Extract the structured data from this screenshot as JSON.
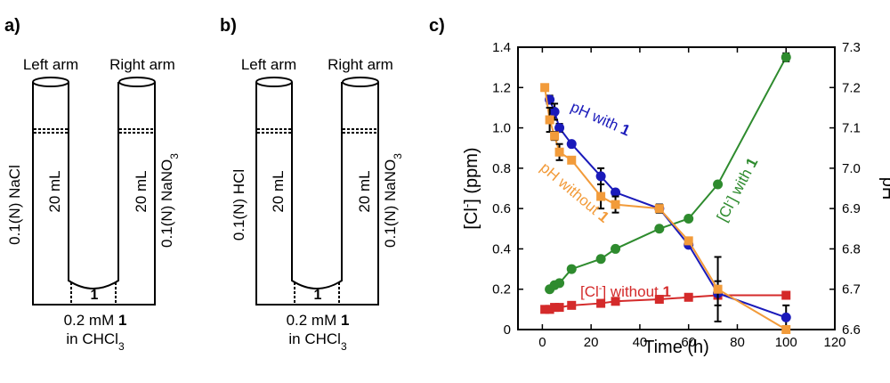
{
  "panels": {
    "a": {
      "letter": "a)",
      "left_arm": "Left arm",
      "right_arm": "Right arm",
      "left_solution": "0.1(N) NaCl",
      "right_solution": "0.1(N) NaNO3",
      "left_volume": "20 mL",
      "right_volume": "20 mL",
      "membrane_label": "1",
      "bottom_line1": "0.2 mM 1",
      "bottom_line2": "in CHCl3"
    },
    "b": {
      "letter": "b)",
      "left_arm": "Left arm",
      "right_arm": "Right arm",
      "left_solution": "0.1(N) HCl",
      "right_solution": "0.1(N) NaNO3",
      "left_volume": "20 mL",
      "right_volume": "20 mL",
      "membrane_label": "1",
      "bottom_line1": "0.2 mM 1",
      "bottom_line2": "in CHCl3"
    },
    "c": {
      "letter": "c)"
    }
  },
  "chart_data": {
    "type": "line",
    "xlabel": "Time (h)",
    "ylabel": "[Cl-] (ppm)",
    "y2label": "pH",
    "xlim": [
      -10,
      120
    ],
    "ylim": [
      0,
      1.4
    ],
    "y2lim": [
      6.6,
      7.3
    ],
    "xticks": [
      0,
      20,
      40,
      60,
      80,
      100,
      120
    ],
    "yticks": [
      0,
      0.2,
      0.4,
      0.6,
      0.8,
      1.0,
      1.2,
      1.4
    ],
    "y2ticks": [
      6.6,
      6.7,
      6.8,
      6.9,
      7.0,
      7.1,
      7.2,
      7.3
    ],
    "series": [
      {
        "name": "[Cl-] with 1",
        "axis": "left",
        "color": "#2e8b2e",
        "marker": "circle",
        "x": [
          3,
          5,
          7,
          12,
          24,
          30,
          48,
          60,
          72,
          100
        ],
        "y": [
          0.2,
          0.22,
          0.23,
          0.3,
          0.35,
          0.4,
          0.5,
          0.55,
          0.72,
          1.35
        ],
        "err": [
          0,
          0,
          0,
          0,
          0,
          0,
          0,
          0,
          0,
          0.02
        ]
      },
      {
        "name": "[Cl-] without 1",
        "axis": "left",
        "color": "#d42a2a",
        "marker": "square",
        "x": [
          1,
          3,
          5,
          7,
          12,
          24,
          30,
          48,
          60,
          72,
          100
        ],
        "y": [
          0.1,
          0.1,
          0.11,
          0.11,
          0.12,
          0.13,
          0.14,
          0.15,
          0.16,
          0.17,
          0.17
        ],
        "err": [
          0,
          0,
          0,
          0,
          0,
          0,
          0,
          0,
          0,
          0,
          0
        ]
      },
      {
        "name": "pH with 1",
        "axis": "right",
        "color": "#1a1aba",
        "marker": "circle",
        "x": [
          3,
          5,
          7,
          12,
          24,
          30,
          48,
          60,
          72,
          100
        ],
        "y": [
          7.17,
          7.14,
          7.1,
          7.06,
          6.98,
          6.94,
          6.9,
          6.81,
          6.69,
          6.63
        ],
        "err": [
          0.01,
          0.02,
          0.01,
          0,
          0.02,
          0,
          0.01,
          0,
          0.03,
          0.03
        ]
      },
      {
        "name": "pH without 1",
        "axis": "right",
        "color": "#f29b3a",
        "marker": "square",
        "x": [
          1,
          3,
          5,
          7,
          12,
          24,
          30,
          48,
          60,
          72,
          100
        ],
        "y": [
          7.2,
          7.12,
          7.08,
          7.04,
          7.02,
          6.93,
          6.91,
          6.9,
          6.82,
          6.7,
          6.6
        ],
        "err": [
          0,
          0.03,
          0.01,
          0.02,
          0,
          0.03,
          0.02,
          0.01,
          0,
          0.08,
          0
        ]
      }
    ],
    "annotations": {
      "ph_with": {
        "text": "pH with ",
        "bold": "1"
      },
      "ph_without": {
        "text": "pH without ",
        "bold": "1"
      },
      "cl_with": {
        "text": "[Cl",
        "sup": "-",
        "rest": "] with ",
        "bold": "1"
      },
      "cl_without": {
        "text": "[Cl",
        "sup": "-",
        "rest": "] without ",
        "bold": "1"
      }
    }
  }
}
